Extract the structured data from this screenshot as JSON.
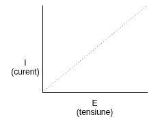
{
  "chart_data": {
    "type": "line",
    "xlabel": "E\n(tensiune)",
    "ylabel": "I\n(curent)",
    "x": [
      0,
      100
    ],
    "values": [
      0,
      100
    ],
    "xlim": [
      0,
      100
    ],
    "ylim": [
      0,
      100
    ],
    "color": "#8c8c8c",
    "line_style": "dotted",
    "marker": "none",
    "grid": false,
    "tick_labels": false
  }
}
